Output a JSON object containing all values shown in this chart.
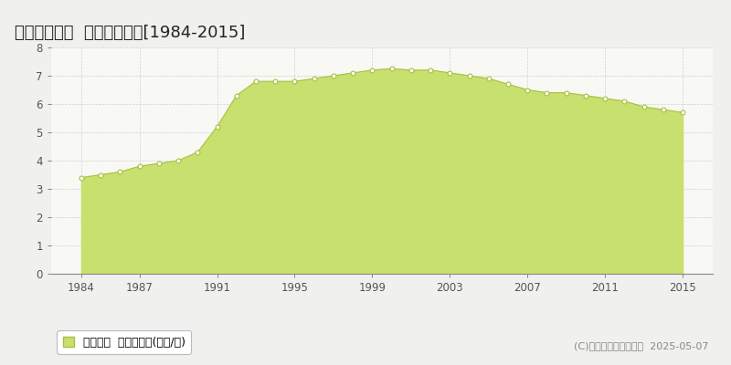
{
  "title": "栃木市千塚町  公示地価推移[1984-2015]",
  "years": [
    1984,
    1985,
    1986,
    1987,
    1988,
    1989,
    1990,
    1991,
    1992,
    1993,
    1994,
    1995,
    1996,
    1997,
    1998,
    1999,
    2000,
    2001,
    2002,
    2003,
    2004,
    2005,
    2006,
    2007,
    2008,
    2009,
    2010,
    2011,
    2012,
    2013,
    2014,
    2015
  ],
  "values": [
    3.4,
    3.5,
    3.6,
    3.8,
    3.9,
    4.0,
    4.3,
    5.2,
    6.3,
    6.8,
    6.8,
    6.8,
    6.9,
    7.0,
    7.1,
    7.2,
    7.25,
    7.2,
    7.2,
    7.1,
    7.0,
    6.9,
    6.7,
    6.5,
    6.4,
    6.4,
    6.3,
    6.2,
    6.1,
    5.9,
    5.8,
    5.7
  ],
  "fill_color": "#c8e06e",
  "line_color": "#a8c040",
  "marker_color": "#ffffff",
  "marker_edge_color": "#a8c040",
  "background_color": "#f0f0ee",
  "plot_bg_color": "#f8f8f4",
  "grid_color": "#cccccc",
  "ylim": [
    0,
    8
  ],
  "yticks": [
    0,
    1,
    2,
    3,
    4,
    5,
    6,
    7,
    8
  ],
  "xticks": [
    1984,
    1987,
    1991,
    1995,
    1999,
    2003,
    2007,
    2011,
    2015
  ],
  "legend_label": "公示地価  平均坪単価(万円/坪)",
  "copyright_text": "(C)土地価格ドットコム  2025-05-07",
  "title_fontsize": 13,
  "axis_fontsize": 8.5,
  "legend_fontsize": 9,
  "copyright_fontsize": 8
}
